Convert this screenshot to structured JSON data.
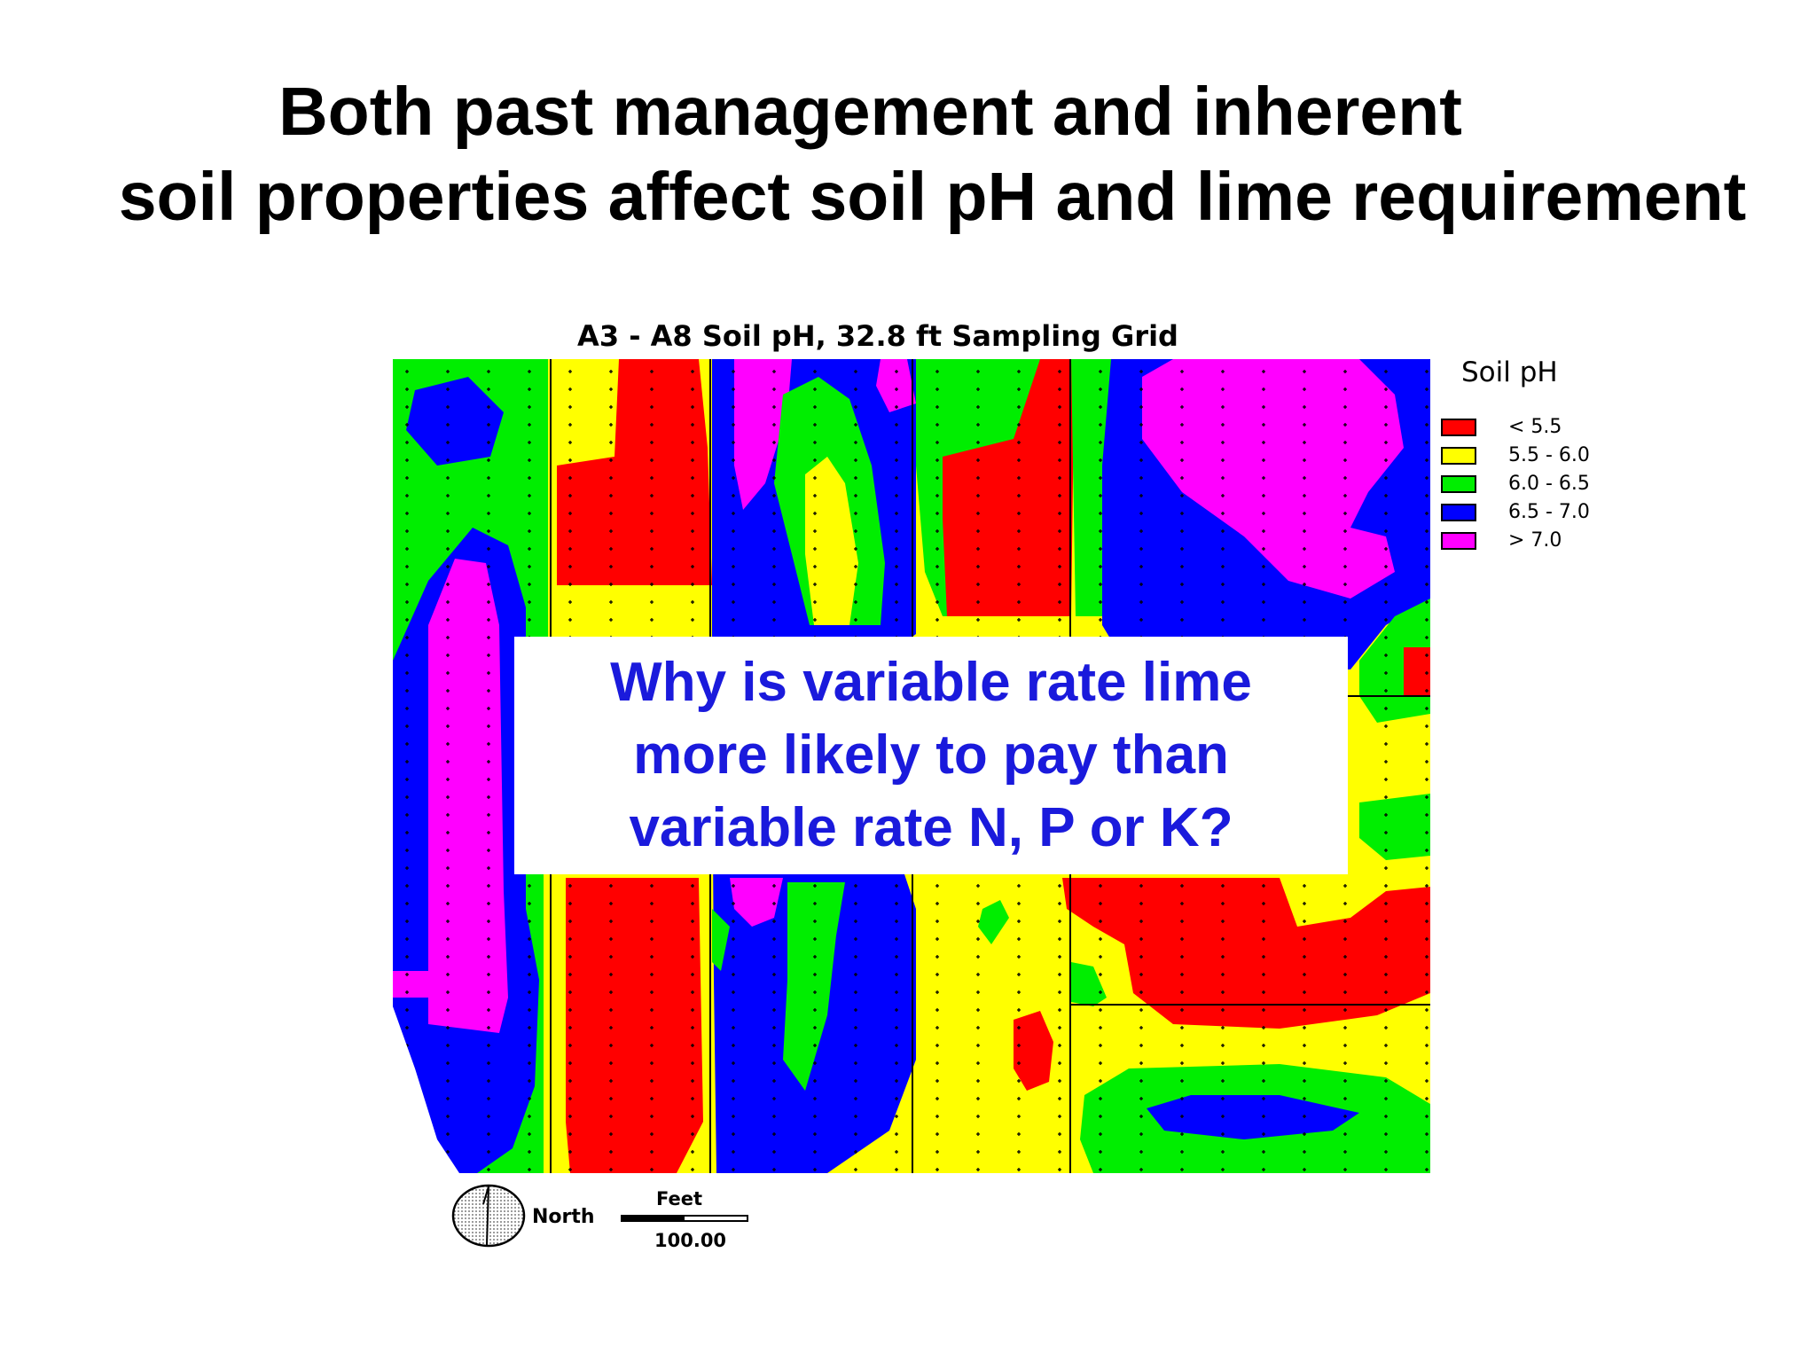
{
  "slide": {
    "title_line1": "Both past management and inherent",
    "title_line2": "soil properties affect soil pH and lime requirement"
  },
  "map": {
    "title": "A3 - A8 Soil pH, 32.8 ft Sampling Grid",
    "colors": {
      "lt_5_5": "#ff0000",
      "5_5_6_0": "#ffff00",
      "6_0_6_5": "#00ee00",
      "6_5_7_0": "#0000ff",
      "gt_7_0": "#ff00ff"
    },
    "legend": {
      "title": "Soil pH",
      "items": [
        {
          "label": "< 5.5",
          "color": "#ff0000"
        },
        {
          "label": "5.5 - 6.0",
          "color": "#ffff00"
        },
        {
          "label": "6.0 - 6.5",
          "color": "#00ee00"
        },
        {
          "label": "6.5 - 7.0",
          "color": "#0000ff"
        },
        {
          "label": "> 7.0",
          "color": "#ff00ff"
        }
      ]
    },
    "north_label": "North",
    "scale_unit": "Feet",
    "scale_value": "100.00"
  },
  "overlay": {
    "text": "Why is variable rate lime\nmore likely to pay than\nvariable rate N, P or  K?"
  }
}
